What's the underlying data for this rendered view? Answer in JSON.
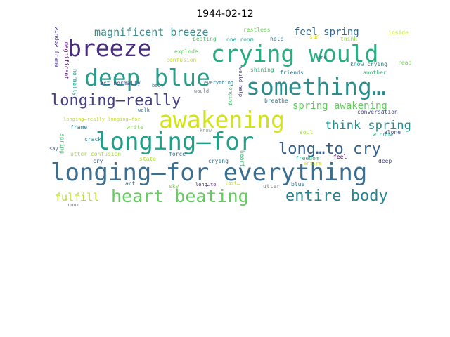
{
  "title": "1944-02-12",
  "words": [
    {
      "text": "longing–for everything",
      "color": "#3b6e8f"
    },
    {
      "text": "longing–for",
      "color": "#1fa187"
    },
    {
      "text": "awakening",
      "color": "#d2e21b"
    },
    {
      "text": "deep blue",
      "color": "#2c9b8b"
    },
    {
      "text": "crying would",
      "color": "#27ad81"
    },
    {
      "text": "breeze",
      "color": "#472d7b"
    },
    {
      "text": "something…",
      "color": "#2a8e8c"
    },
    {
      "text": "longing–really",
      "color": "#433e85"
    },
    {
      "text": "heart beating",
      "color": "#63cb5f"
    },
    {
      "text": "entire body",
      "color": "#25858e"
    },
    {
      "text": "long…to cry",
      "color": "#35608d"
    },
    {
      "text": "think spring",
      "color": "#218f8d"
    },
    {
      "text": "spring awakening",
      "color": "#63cb5f"
    },
    {
      "text": "magnificent breeze",
      "color": "#3b8f8b"
    },
    {
      "text": "feel spring",
      "color": "#31688e"
    },
    {
      "text": "fulfill",
      "color": "#b5de2b"
    },
    {
      "text": "explode",
      "color": "#5ec962"
    },
    {
      "text": "confusion",
      "color": "#c8e020"
    },
    {
      "text": "act normally",
      "color": "#3e4a89"
    },
    {
      "text": "everything",
      "color": "#2a788e"
    },
    {
      "text": "beating",
      "color": "#4ac16d"
    },
    {
      "text": "one room",
      "color": "#1f9e89"
    },
    {
      "text": "restless",
      "color": "#6ccd5a"
    },
    {
      "text": "help",
      "color": "#2b748e"
    },
    {
      "text": "sun",
      "color": "#e5e419"
    },
    {
      "text": "think",
      "color": "#90d743"
    },
    {
      "text": "inside",
      "color": "#b8de29"
    },
    {
      "text": "window frame",
      "color": "#46337f"
    },
    {
      "text": "magnificent",
      "color": "#440154"
    },
    {
      "text": "normally",
      "color": "#20a486"
    },
    {
      "text": "body",
      "color": "#2d718e"
    },
    {
      "text": "would",
      "color": "#6e7b8b"
    },
    {
      "text": "longing",
      "color": "#44bf70"
    },
    {
      "text": "would help",
      "color": "#443983"
    },
    {
      "text": "shining",
      "color": "#32b67a"
    },
    {
      "text": "friends",
      "color": "#287c8e"
    },
    {
      "text": "know crying",
      "color": "#25838e"
    },
    {
      "text": "read",
      "color": "#7ad151"
    },
    {
      "text": "another",
      "color": "#35b779"
    },
    {
      "text": "breathe",
      "color": "#26828e"
    },
    {
      "text": "conversation",
      "color": "#3e4989"
    },
    {
      "text": "one",
      "color": "#31688e"
    },
    {
      "text": "longing–really longing–for",
      "color": "#c0df25"
    },
    {
      "text": "walk",
      "color": "#2f6c8e"
    },
    {
      "text": "write",
      "color": "#7fd34e"
    },
    {
      "text": "soul",
      "color": "#a2da37"
    },
    {
      "text": "frame",
      "color": "#2a778e"
    },
    {
      "text": "know",
      "color": "#8a9a9a"
    },
    {
      "text": "window",
      "color": "#29af7f"
    },
    {
      "text": "alone",
      "color": "#3f4788"
    },
    {
      "text": "spring",
      "color": "#45bf6f"
    },
    {
      "text": "say",
      "color": "#39568c"
    },
    {
      "text": "crack",
      "color": "#277f8e"
    },
    {
      "text": "force",
      "color": "#2d708e"
    },
    {
      "text": "freedom",
      "color": "#24aa83"
    },
    {
      "text": "utter confusion",
      "color": "#a5db36"
    },
    {
      "text": "state",
      "color": "#b0dd2f"
    },
    {
      "text": "heart",
      "color": "#3bbb75"
    },
    {
      "text": "crying",
      "color": "#2a778e"
    },
    {
      "text": "entire",
      "color": "#d0e11c"
    },
    {
      "text": "feel",
      "color": "#440154"
    },
    {
      "text": "deep",
      "color": "#414487"
    },
    {
      "text": "cry",
      "color": "#365c8d"
    },
    {
      "text": "act",
      "color": "#2e6f8e"
    },
    {
      "text": "sky",
      "color": "#75d054"
    },
    {
      "text": "long…to",
      "color": "#482475"
    },
    {
      "text": "last…",
      "color": "#c5e021"
    },
    {
      "text": "utter",
      "color": "#6e7b8b"
    },
    {
      "text": "blue",
      "color": "#2c728e"
    },
    {
      "text": "room",
      "color": "#7a7a8b"
    }
  ]
}
